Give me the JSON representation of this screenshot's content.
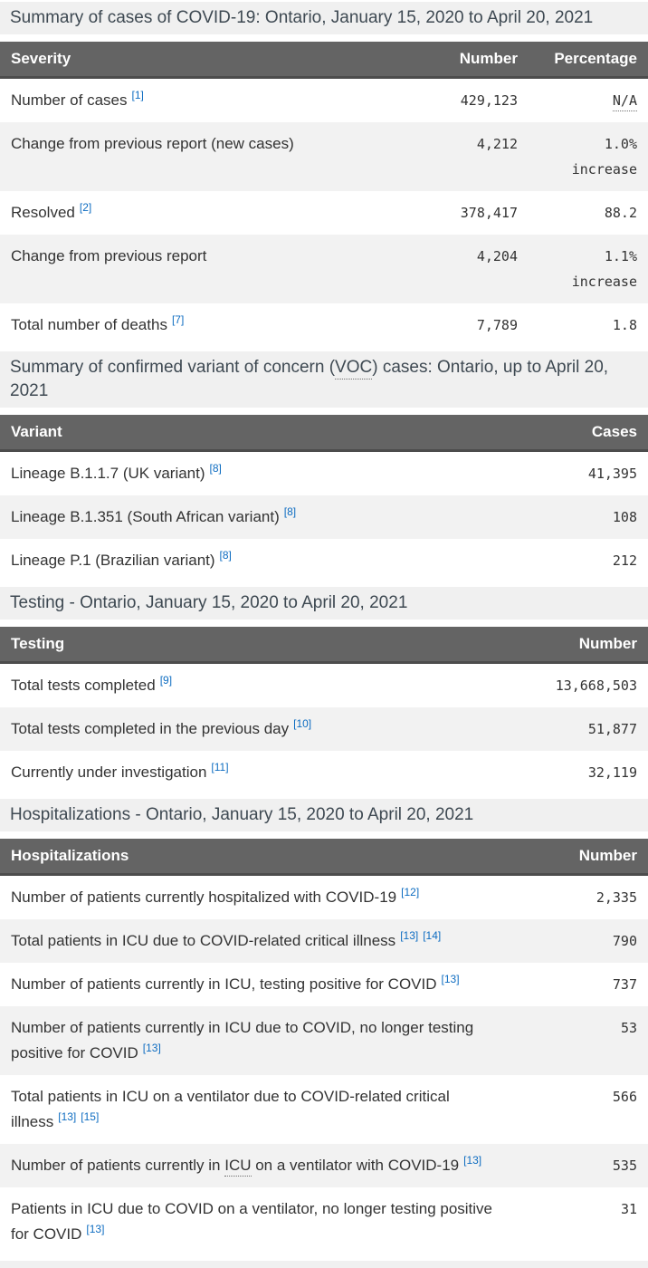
{
  "colors": {
    "table_header_bg": "#646464",
    "section_heading_bg": "#f0f0f0",
    "zebra_row": "#f2f2f2",
    "link_blue": "#0d6cc1",
    "header_text": "#ffffff",
    "body_text": "#333333",
    "heading_text": "#3e4952"
  },
  "sections": [
    {
      "heading_parts": [
        {
          "text": "Summary of cases of COVID-19: Ontario, January 15, 2020 to April 20, 2021"
        }
      ],
      "columns": [
        "Severity",
        "Number",
        "Percentage"
      ],
      "rows": [
        {
          "parts": [
            {
              "text": "Number of cases"
            }
          ],
          "refs": [
            "[1]"
          ],
          "cells": [
            {
              "text": "429,123"
            },
            {
              "text": "N/A",
              "abbr": true
            }
          ]
        },
        {
          "parts": [
            {
              "text": "Change from previous report (new cases)"
            }
          ],
          "refs": [],
          "cells": [
            {
              "text": "4,212"
            },
            {
              "text": "1.0% increase"
            }
          ]
        },
        {
          "parts": [
            {
              "text": "Resolved"
            }
          ],
          "refs": [
            "[2]"
          ],
          "cells": [
            {
              "text": "378,417"
            },
            {
              "text": "88.2"
            }
          ]
        },
        {
          "parts": [
            {
              "text": "Change from previous report"
            }
          ],
          "refs": [],
          "cells": [
            {
              "text": "4,204"
            },
            {
              "text": "1.1% increase"
            }
          ]
        },
        {
          "parts": [
            {
              "text": "Total number of deaths"
            }
          ],
          "refs": [
            "[7]"
          ],
          "cells": [
            {
              "text": "7,789"
            },
            {
              "text": "1.8"
            }
          ]
        }
      ]
    },
    {
      "heading_parts": [
        {
          "text": "Summary of confirmed variant of concern ("
        },
        {
          "text": "VOC",
          "abbr": true
        },
        {
          "text": ") cases: Ontario, up to April 20, 2021"
        }
      ],
      "columns": [
        "Variant",
        "Cases"
      ],
      "rows": [
        {
          "parts": [
            {
              "text": "Lineage B.1.1.7 (UK variant)"
            }
          ],
          "refs": [
            "[8]"
          ],
          "cells": [
            {
              "text": "41,395"
            }
          ]
        },
        {
          "parts": [
            {
              "text": "Lineage B.1.351 (South African variant)"
            }
          ],
          "refs": [
            "[8]"
          ],
          "cells": [
            {
              "text": "108"
            }
          ]
        },
        {
          "parts": [
            {
              "text": "Lineage P.1 (Brazilian variant)"
            }
          ],
          "refs": [
            "[8]"
          ],
          "cells": [
            {
              "text": "212"
            }
          ]
        }
      ]
    },
    {
      "heading_parts": [
        {
          "text": "Testing - Ontario, January 15, 2020 to April 20, 2021"
        }
      ],
      "columns": [
        "Testing",
        "Number"
      ],
      "rows": [
        {
          "parts": [
            {
              "text": "Total tests completed"
            }
          ],
          "refs": [
            "[9]"
          ],
          "cells": [
            {
              "text": "13,668,503"
            }
          ]
        },
        {
          "parts": [
            {
              "text": "Total tests completed in the previous day"
            }
          ],
          "refs": [
            "[10]"
          ],
          "cells": [
            {
              "text": "51,877"
            }
          ]
        },
        {
          "parts": [
            {
              "text": "Currently under investigation"
            }
          ],
          "refs": [
            "[11]"
          ],
          "cells": [
            {
              "text": "32,119"
            }
          ]
        }
      ]
    },
    {
      "heading_parts": [
        {
          "text": "Hospitalizations - Ontario, January 15, 2020 to April 20, 2021"
        }
      ],
      "columns": [
        "Hospitalizations",
        "Number"
      ],
      "rows": [
        {
          "parts": [
            {
              "text": "Number of patients currently hospitalized with COVID-19"
            }
          ],
          "refs": [
            "[12]"
          ],
          "cells": [
            {
              "text": "2,335"
            }
          ]
        },
        {
          "parts": [
            {
              "text": "Total patients in ICU due to COVID-related critical illness"
            }
          ],
          "refs": [
            "[13]",
            "[14]"
          ],
          "cells": [
            {
              "text": "790"
            }
          ]
        },
        {
          "parts": [
            {
              "text": "Number of patients currently in ICU, testing positive for COVID"
            }
          ],
          "refs": [
            "[13]"
          ],
          "cells": [
            {
              "text": "737"
            }
          ]
        },
        {
          "parts": [
            {
              "text": "Number of patients currently in ICU due to COVID, no longer testing positive for COVID"
            }
          ],
          "refs": [
            "[13]"
          ],
          "cells": [
            {
              "text": "53"
            }
          ]
        },
        {
          "parts": [
            {
              "text": "Total patients in ICU on a ventilator due to COVID-related critical illness"
            }
          ],
          "refs": [
            "[13]",
            "[15]"
          ],
          "cells": [
            {
              "text": "566"
            }
          ]
        },
        {
          "parts": [
            {
              "text": "Number of patients currently in "
            },
            {
              "text": "ICU",
              "abbr": true
            },
            {
              "text": " on a ventilator with COVID-19"
            }
          ],
          "refs": [
            "[13]"
          ],
          "cells": [
            {
              "text": "535"
            }
          ]
        },
        {
          "parts": [
            {
              "text": "Patients in ICU due to COVID on a ventilator, no longer testing positive for COVID"
            }
          ],
          "refs": [
            "[13]"
          ],
          "cells": [
            {
              "text": "31"
            }
          ]
        }
      ]
    }
  ]
}
